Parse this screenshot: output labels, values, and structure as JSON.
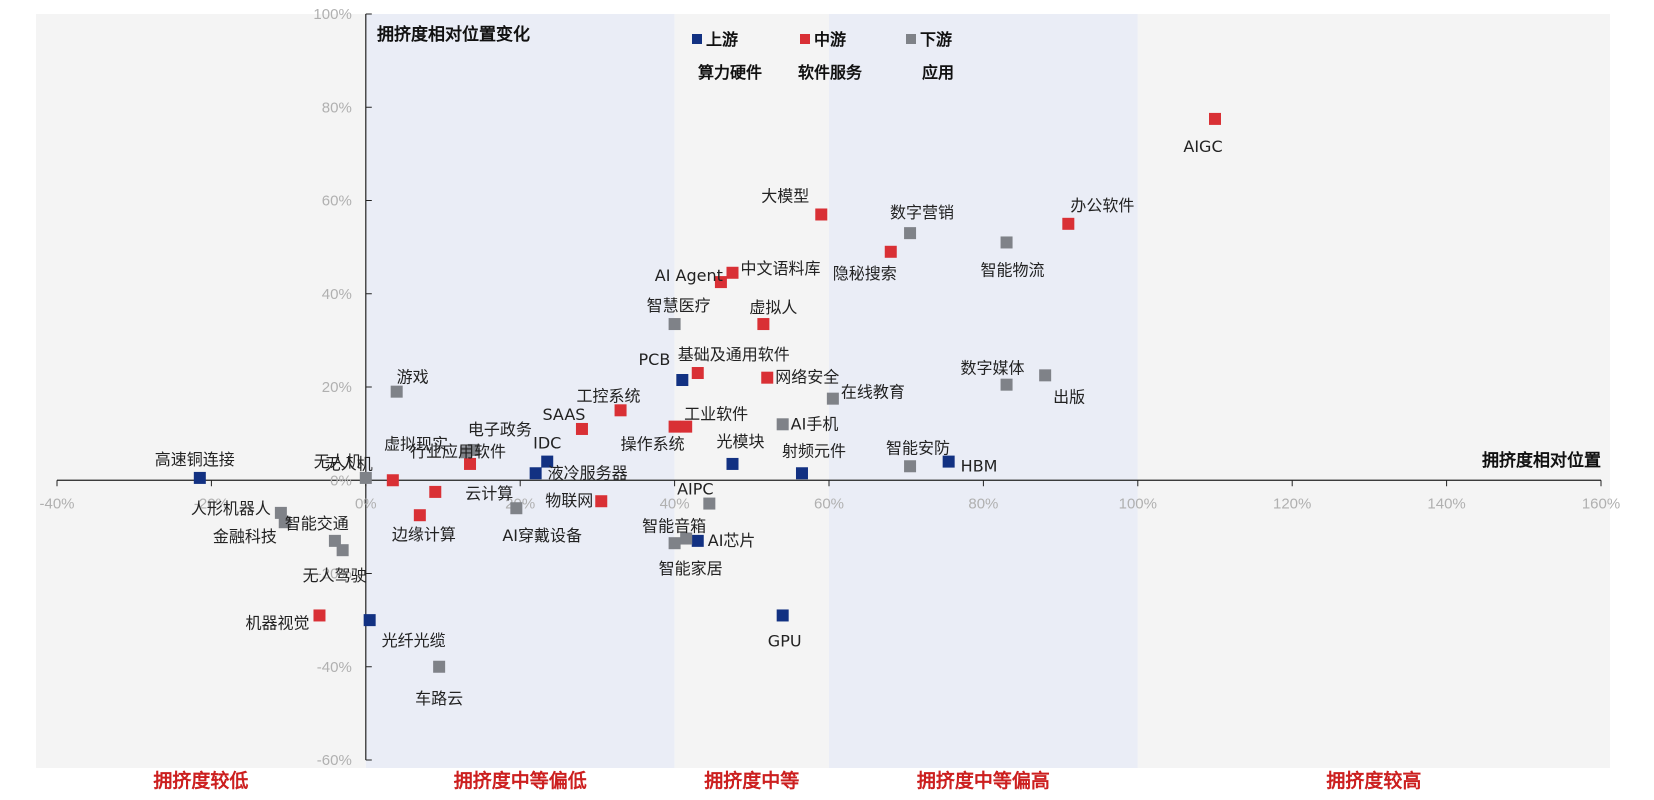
{
  "chart_data": {
    "type": "scatter",
    "title": "",
    "xlabel": "拥挤度相对位置",
    "ylabel": "拥挤度相对位置变化",
    "xlim": [
      -0.4,
      1.6
    ],
    "ylim": [
      -0.6,
      1.0
    ],
    "x_ticks": [
      "-40%",
      "-20%",
      "0%",
      "20%",
      "40%",
      "60%",
      "80%",
      "100%",
      "120%",
      "140%",
      "160%"
    ],
    "y_ticks": [
      "100%",
      "80%",
      "60%",
      "40%",
      "20%",
      "0%",
      "-20%",
      "-40%",
      "-60%"
    ],
    "zones": [
      {
        "label": "拥挤度较低",
        "from": -0.4,
        "to": 0.0,
        "color": "#f4f4f4"
      },
      {
        "label": "拥挤度中等偏低",
        "from": 0.0,
        "to": 0.4,
        "color": "#eaedf6"
      },
      {
        "label": "拥挤度中等",
        "from": 0.4,
        "to": 0.6,
        "color": "#f4f4f4"
      },
      {
        "label": "拥挤度中等偏高",
        "from": 0.6,
        "to": 1.0,
        "color": "#eaedf6"
      },
      {
        "label": "拥挤度较高",
        "from": 1.0,
        "to": 1.6,
        "color": "#f4f4f4"
      }
    ],
    "legend_position": "top",
    "series": [
      {
        "name": "上游",
        "subtitle": "算力硬件",
        "color": "#123182",
        "points": [
          {
            "label": "高速铜连接",
            "x": -0.215,
            "y": 0.005
          },
          {
            "label": "光纤光缆",
            "x": 0.005,
            "y": -0.3
          },
          {
            "label": "IDC",
            "x": 0.235,
            "y": 0.04
          },
          {
            "label": "液冷服务器",
            "x": 0.22,
            "y": 0.015
          },
          {
            "label": "PCB",
            "x": 0.41,
            "y": 0.215
          },
          {
            "label": "光模块",
            "x": 0.475,
            "y": 0.035
          },
          {
            "label": "射频元件",
            "x": 0.565,
            "y": 0.015
          },
          {
            "label": "AI芯片",
            "x": 0.43,
            "y": -0.13
          },
          {
            "label": "GPU",
            "x": 0.54,
            "y": -0.29
          },
          {
            "label": "HBM",
            "x": 0.755,
            "y": 0.04
          }
        ]
      },
      {
        "name": "中游",
        "subtitle": "软件服务",
        "color": "#d93035",
        "points": [
          {
            "label": "AIGC",
            "x": 1.1,
            "y": 0.775
          },
          {
            "label": "办公软件",
            "x": 0.91,
            "y": 0.55
          },
          {
            "label": "大模型",
            "x": 0.59,
            "y": 0.57
          },
          {
            "label": "隐秘搜索",
            "x": 0.68,
            "y": 0.49
          },
          {
            "label": "中文语料库",
            "x": 0.475,
            "y": 0.445
          },
          {
            "label": "AI Agent",
            "x": 0.46,
            "y": 0.425
          },
          {
            "label": "虚拟人",
            "x": 0.515,
            "y": 0.335
          },
          {
            "label": "基础及通用软件",
            "x": 0.43,
            "y": 0.23
          },
          {
            "label": "网络安全",
            "x": 0.52,
            "y": 0.22
          },
          {
            "label": "工控系统",
            "x": 0.33,
            "y": 0.15
          },
          {
            "label": "SAAS",
            "x": 0.28,
            "y": 0.11
          },
          {
            "label": "工业软件",
            "x": 0.415,
            "y": 0.115
          },
          {
            "label": "操作系统",
            "x": 0.4,
            "y": 0.115
          },
          {
            "label": "行业应用软件",
            "x": 0.135,
            "y": 0.035
          },
          {
            "label": "无人机",
            "x": 0.035,
            "y": 0.0
          },
          {
            "label": "云计算",
            "x": 0.09,
            "y": -0.025
          },
          {
            "label": "物联网",
            "x": 0.305,
            "y": -0.045
          },
          {
            "label": "边缘计算",
            "x": 0.07,
            "y": -0.075
          },
          {
            "label": "机器视觉",
            "x": -0.06,
            "y": -0.29
          }
        ]
      },
      {
        "name": "下游",
        "subtitle": "应用",
        "color": "#7f8288",
        "points": [
          {
            "label": "数字营销",
            "x": 0.705,
            "y": 0.53
          },
          {
            "label": "智能物流",
            "x": 0.83,
            "y": 0.51
          },
          {
            "label": "智慧医疗",
            "x": 0.4,
            "y": 0.335
          },
          {
            "label": "数字媒体",
            "x": 0.83,
            "y": 0.205
          },
          {
            "label": "出版",
            "x": 0.88,
            "y": 0.225
          },
          {
            "label": "在线教育",
            "x": 0.605,
            "y": 0.175
          },
          {
            "label": "AI手机",
            "x": 0.54,
            "y": 0.12
          },
          {
            "label": "智能安防",
            "x": 0.705,
            "y": 0.03
          },
          {
            "label": "游戏",
            "x": 0.04,
            "y": 0.19
          },
          {
            "label": "电子政务",
            "x": 0.14,
            "y": 0.065
          },
          {
            "label": "虚拟现实",
            "x": 0.13,
            "y": 0.06
          },
          {
            "label": "AIPC",
            "x": 0.445,
            "y": -0.05
          },
          {
            "label": "AI穿戴设备",
            "x": 0.195,
            "y": -0.06
          },
          {
            "label": "智能音箱",
            "x": 0.415,
            "y": -0.125
          },
          {
            "label": "智能家居",
            "x": 0.4,
            "y": -0.135
          },
          {
            "label": "人形机器人",
            "x": -0.11,
            "y": -0.07
          },
          {
            "label": "智能交通",
            "x": -0.105,
            "y": -0.09
          },
          {
            "label": "金融科技",
            "x": -0.04,
            "y": -0.13
          },
          {
            "label": "无人驾驶",
            "x": -0.03,
            "y": -0.15
          },
          {
            "label": "车路云",
            "x": 0.095,
            "y": -0.4
          },
          {
            "label": "无人机",
            "x": 0.0,
            "y": 0.005
          }
        ]
      }
    ]
  }
}
